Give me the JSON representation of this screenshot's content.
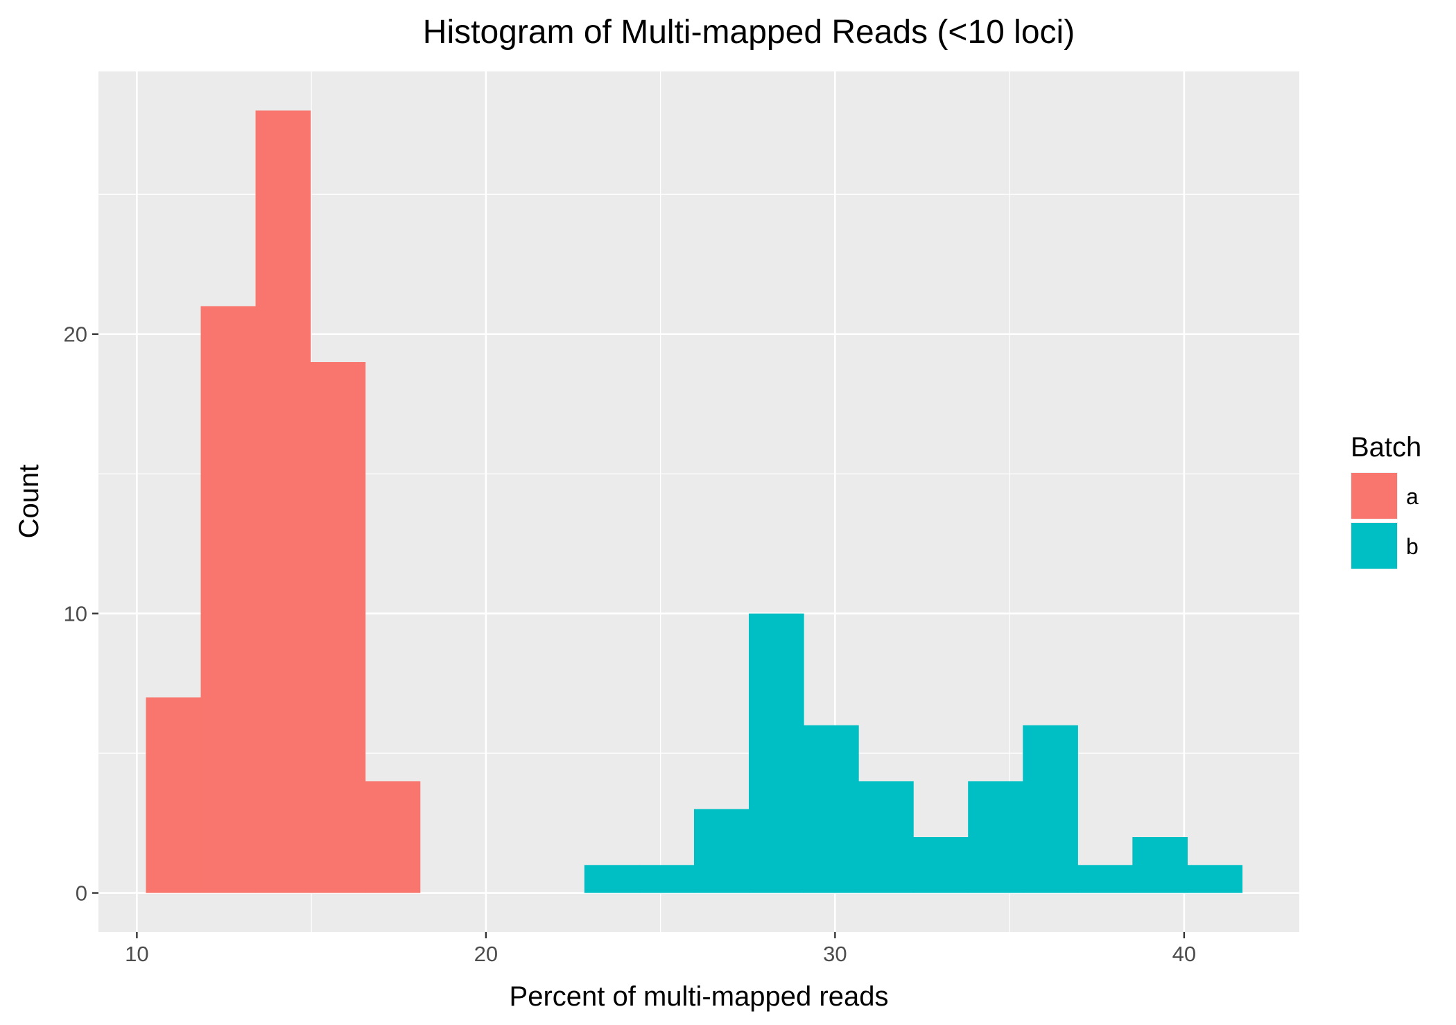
{
  "chart_data": {
    "type": "bar",
    "title": "Histogram of Multi-mapped Reads (<10 loci)",
    "xlabel": "Percent of multi-mapped reads",
    "ylabel": "Count",
    "xlim": [
      8.9,
      43.3
    ],
    "ylim": [
      -1.4,
      29.4
    ],
    "x_ticks": [
      10,
      20,
      30,
      40
    ],
    "x_tick_labels": [
      "10",
      "20",
      "30",
      "40"
    ],
    "y_ticks": [
      0,
      10,
      20
    ],
    "y_tick_labels": [
      "0",
      "10",
      "20"
    ],
    "x_minor": [
      15,
      25,
      35
    ],
    "y_minor": [
      5,
      15,
      25
    ],
    "grid": true,
    "legend": {
      "title": "Batch",
      "position": "right"
    },
    "bin_width": 1.57,
    "series": [
      {
        "name": "a",
        "color": "#F8766D",
        "bins": [
          {
            "x0": 10.26,
            "x1": 11.83,
            "count": 7
          },
          {
            "x0": 11.83,
            "x1": 13.4,
            "count": 21
          },
          {
            "x0": 13.4,
            "x1": 14.97,
            "count": 28
          },
          {
            "x0": 14.97,
            "x1": 16.54,
            "count": 19
          },
          {
            "x0": 16.54,
            "x1": 18.11,
            "count": 4
          }
        ]
      },
      {
        "name": "b",
        "color": "#00BFC4",
        "bins": [
          {
            "x0": 22.82,
            "x1": 24.39,
            "count": 1
          },
          {
            "x0": 24.39,
            "x1": 25.96,
            "count": 1
          },
          {
            "x0": 25.96,
            "x1": 27.53,
            "count": 3
          },
          {
            "x0": 27.53,
            "x1": 29.1,
            "count": 10
          },
          {
            "x0": 29.1,
            "x1": 30.67,
            "count": 6
          },
          {
            "x0": 30.67,
            "x1": 32.24,
            "count": 4
          },
          {
            "x0": 32.24,
            "x1": 33.81,
            "count": 2
          },
          {
            "x0": 33.81,
            "x1": 35.38,
            "count": 4
          },
          {
            "x0": 35.38,
            "x1": 36.95,
            "count": 6
          },
          {
            "x0": 36.95,
            "x1": 38.52,
            "count": 1
          },
          {
            "x0": 38.52,
            "x1": 40.09,
            "count": 2
          },
          {
            "x0": 40.09,
            "x1": 41.66,
            "count": 1
          }
        ]
      }
    ]
  }
}
